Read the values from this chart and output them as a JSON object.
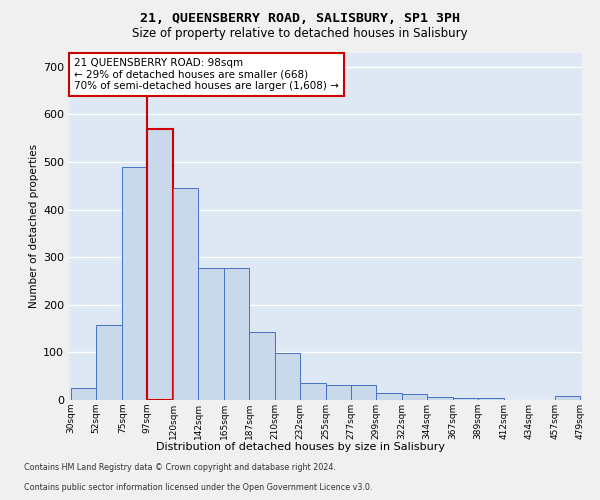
{
  "title1": "21, QUEENSBERRY ROAD, SALISBURY, SP1 3PH",
  "title2": "Size of property relative to detached houses in Salisbury",
  "xlabel": "Distribution of detached houses by size in Salisbury",
  "ylabel": "Number of detached properties",
  "footnote1": "Contains HM Land Registry data © Crown copyright and database right 2024.",
  "footnote2": "Contains public sector information licensed under the Open Government Licence v3.0.",
  "annotation_line1": "21 QUEENSBERRY ROAD: 98sqm",
  "annotation_line2": "← 29% of detached houses are smaller (668)",
  "annotation_line3": "70% of semi-detached houses are larger (1,608) →",
  "property_size": 98,
  "bar_left_edges": [
    30,
    52,
    75,
    97,
    120,
    142,
    165,
    187,
    210,
    232,
    255,
    277,
    299,
    322,
    344,
    367,
    389,
    412,
    434,
    457
  ],
  "bar_widths": [
    22,
    23,
    22,
    23,
    22,
    23,
    22,
    23,
    22,
    23,
    22,
    22,
    23,
    22,
    23,
    22,
    23,
    22,
    23,
    22
  ],
  "bar_heights": [
    25,
    157,
    490,
    570,
    445,
    277,
    277,
    143,
    98,
    35,
    32,
    32,
    15,
    12,
    7,
    5,
    5,
    0,
    0,
    8
  ],
  "bar_labels": [
    "30sqm",
    "52sqm",
    "75sqm",
    "97sqm",
    "120sqm",
    "142sqm",
    "165sqm",
    "187sqm",
    "210sqm",
    "232sqm",
    "255sqm",
    "277sqm",
    "299sqm",
    "322sqm",
    "344sqm",
    "367sqm",
    "389sqm",
    "412sqm",
    "434sqm",
    "457sqm",
    "479sqm"
  ],
  "bar_color": "#c9d9eb",
  "bar_edge_color": "#4472c4",
  "highlight_bar_index": 3,
  "highlight_edge_color": "#cc0000",
  "ylim": [
    0,
    730
  ],
  "xlim": [
    28,
    481
  ],
  "background_color": "#dde8f4",
  "grid_color": "#ffffff",
  "annotation_box_color": "#ffffff",
  "annotation_box_edge": "#cc0000"
}
